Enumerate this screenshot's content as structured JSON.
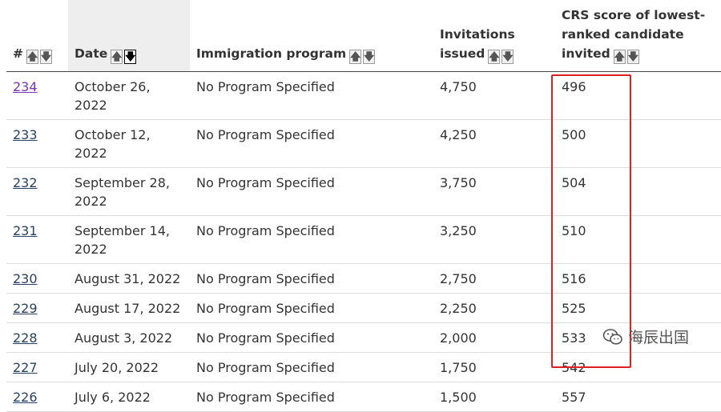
{
  "table": {
    "headers": {
      "number": "#",
      "date": "Date",
      "program": "Immigration program",
      "invitations": "Invitations issued",
      "crs": "CRS score of lowest-ranked candidate invited"
    },
    "sort_icons": {
      "ascending": "arrow-up-icon",
      "descending": "arrow-down-icon",
      "active_sort": "date-descending"
    },
    "rows": [
      {
        "number": "234",
        "date": "October 26, 2022",
        "program": "No Program Specified",
        "invitations": "4,750",
        "crs": "496"
      },
      {
        "number": "233",
        "date": "October 12, 2022",
        "program": "No Program Specified",
        "invitations": "4,250",
        "crs": "500"
      },
      {
        "number": "232",
        "date": "September 28, 2022",
        "program": "No Program Specified",
        "invitations": "3,750",
        "crs": "504"
      },
      {
        "number": "231",
        "date": "September 14, 2022",
        "program": "No Program Specified",
        "invitations": "3,250",
        "crs": "510"
      },
      {
        "number": "230",
        "date": "August 31, 2022",
        "program": "No Program Specified",
        "invitations": "2,750",
        "crs": "516"
      },
      {
        "number": "229",
        "date": "August 17, 2022",
        "program": "No Program Specified",
        "invitations": "2,250",
        "crs": "525"
      },
      {
        "number": "228",
        "date": "August 3, 2022",
        "program": "No Program Specified",
        "invitations": "2,000",
        "crs": "533"
      },
      {
        "number": "227",
        "date": "July 20, 2022",
        "program": "No Program Specified",
        "invitations": "1,750",
        "crs": "542"
      },
      {
        "number": "226",
        "date": "July 6, 2022",
        "program": "No Program Specified",
        "invitations": "1,500",
        "crs": "557"
      }
    ]
  },
  "watermark": {
    "text": "海辰出国",
    "icon": "wechat-icon"
  },
  "colors": {
    "link": "#284162",
    "visited_link": "#7834bc",
    "highlight": "#e02020",
    "sorted_header_bg": "#eeeeee"
  }
}
